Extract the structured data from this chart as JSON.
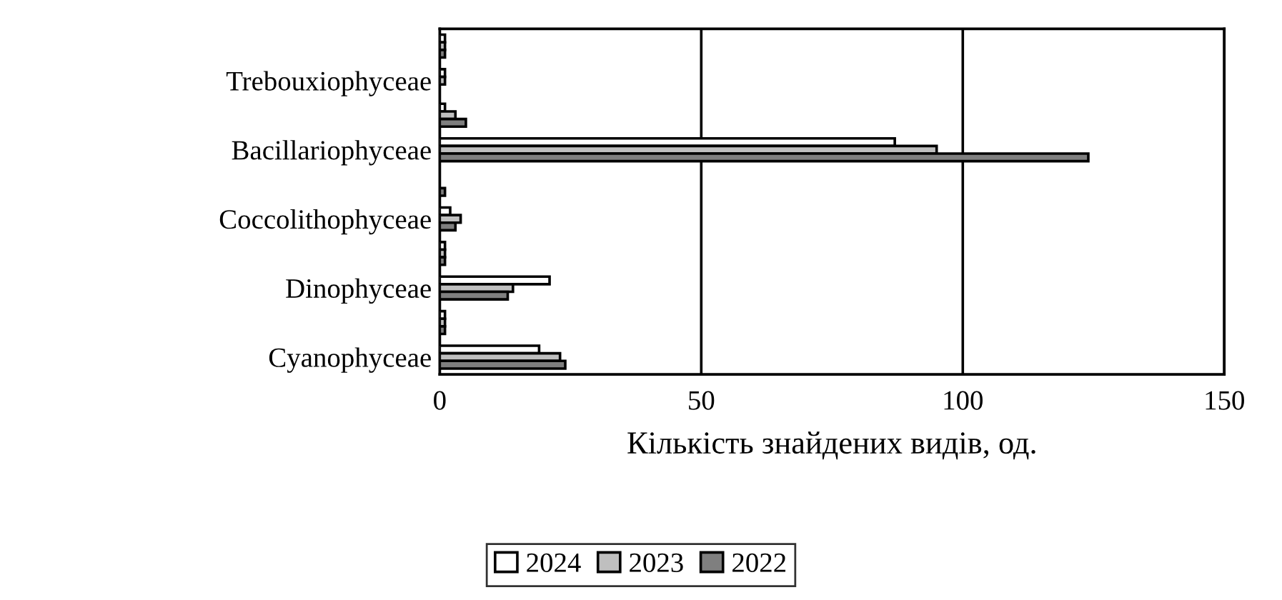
{
  "chart_data": {
    "type": "bar",
    "orientation": "horizontal",
    "xlabel": "Кількість знайдених видів, од.",
    "categories": [
      null,
      "Trebouxiophyceae",
      null,
      "Bacillariophyceae",
      null,
      "Coccolithophyceae",
      null,
      "Dinophyceae",
      null,
      "Cyanophyceae"
    ],
    "series": [
      {
        "name": "2024",
        "color": "#ffffff",
        "values": [
          1,
          1,
          1,
          87,
          null,
          2,
          1,
          21,
          1,
          19
        ]
      },
      {
        "name": "2023",
        "color": "#bfbfbf",
        "values": [
          1,
          1,
          3,
          95,
          null,
          4,
          1,
          14,
          1,
          23
        ]
      },
      {
        "name": "2022",
        "color": "#7f7f7f",
        "values": [
          1,
          null,
          5,
          124,
          1,
          3,
          1,
          13,
          1,
          24
        ]
      }
    ],
    "xlim": [
      0,
      150
    ],
    "xticks": [
      0,
      50,
      100,
      150
    ],
    "grid": "x",
    "legend": "bottom"
  }
}
